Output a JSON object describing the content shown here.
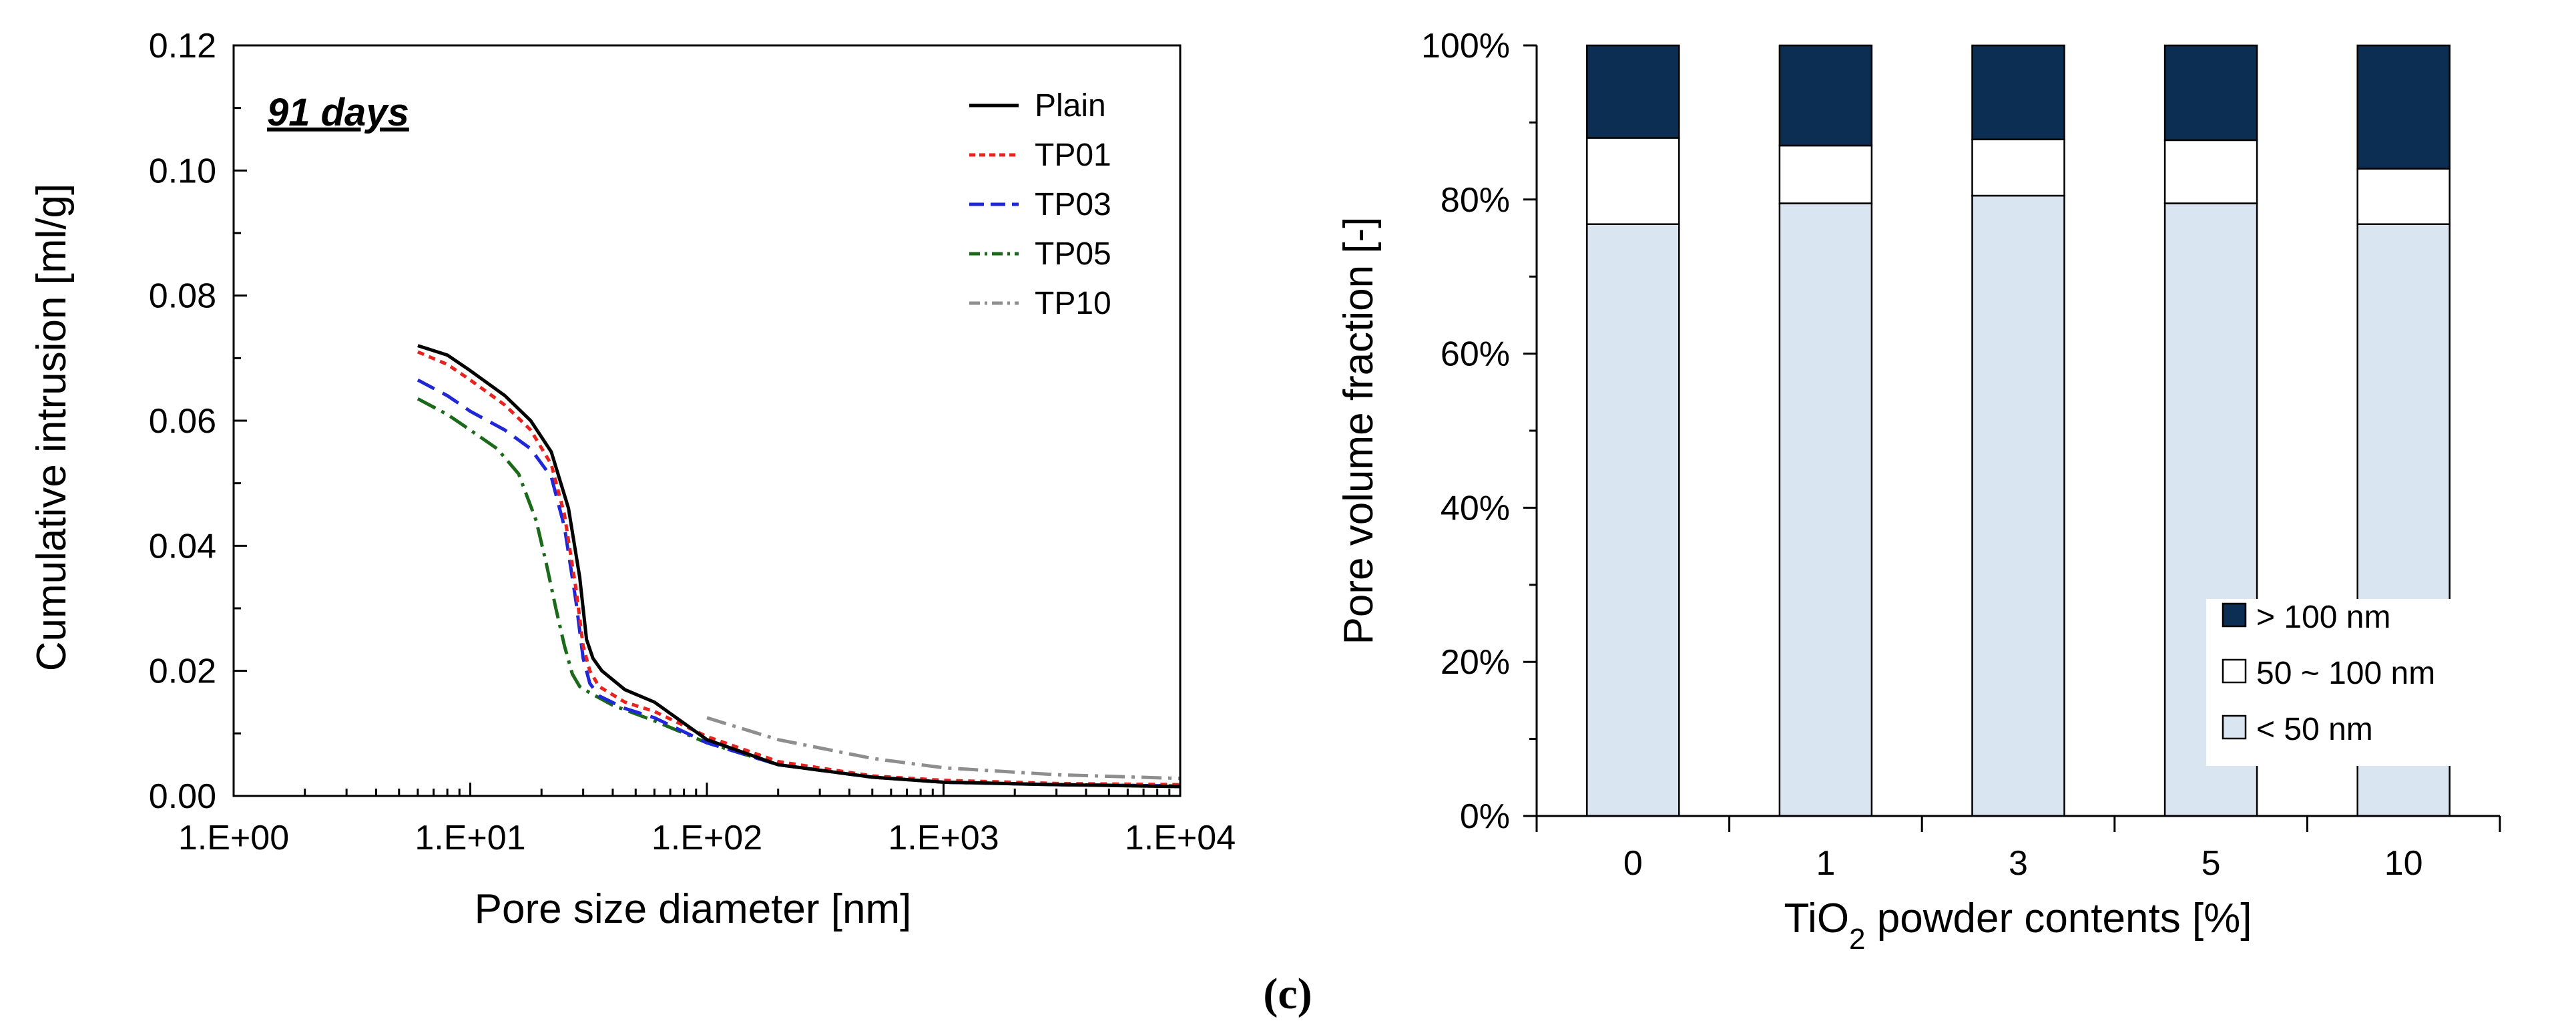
{
  "panel_label": "(c)",
  "chart_data": [
    {
      "type": "line",
      "annotation": "91 days",
      "xlabel": "Pore size diameter [nm]",
      "ylabel": "Cumulative intrusion [ml/g]",
      "xscale": "log",
      "xlim": [
        1,
        10000
      ],
      "ylim": [
        0,
        0.12
      ],
      "x_tick_labels": [
        "1.E+00",
        "1.E+01",
        "1.E+02",
        "1.E+03",
        "1.E+04"
      ],
      "y_tick_labels": [
        "0.00",
        "0.02",
        "0.04",
        "0.06",
        "0.08",
        "0.10",
        "0.12"
      ],
      "legend_position": "top-right",
      "series": [
        {
          "name": "Plain",
          "color": "#000000",
          "dash": "solid",
          "x": [
            6,
            8,
            10,
            14,
            18,
            22,
            26,
            29,
            31,
            33,
            36,
            45,
            60,
            100,
            200,
            500,
            1000,
            3000,
            10000
          ],
          "y": [
            0.072,
            0.0705,
            0.068,
            0.064,
            0.06,
            0.055,
            0.046,
            0.035,
            0.025,
            0.022,
            0.02,
            0.017,
            0.015,
            0.009,
            0.005,
            0.003,
            0.0022,
            0.0018,
            0.0015
          ]
        },
        {
          "name": "TP01",
          "color": "#e8231f",
          "dash": "10,8",
          "x": [
            6,
            8,
            10,
            14,
            18,
            22,
            25,
            28,
            30,
            32,
            35,
            45,
            60,
            100,
            200,
            500,
            1000,
            3000,
            10000
          ],
          "y": [
            0.071,
            0.069,
            0.0665,
            0.0625,
            0.0585,
            0.053,
            0.045,
            0.033,
            0.024,
            0.02,
            0.0175,
            0.015,
            0.0135,
            0.0095,
            0.0055,
            0.0032,
            0.0025,
            0.002,
            0.0018
          ]
        },
        {
          "name": "TP03",
          "color": "#1f27d8",
          "dash": "28,14",
          "x": [
            6,
            8,
            10,
            14,
            18,
            22,
            25,
            28,
            30,
            32,
            35,
            45,
            60,
            100,
            200,
            500,
            1000,
            3000,
            10000
          ],
          "y": [
            0.0665,
            0.064,
            0.0615,
            0.0585,
            0.0555,
            0.051,
            0.043,
            0.031,
            0.022,
            0.018,
            0.016,
            0.014,
            0.0125,
            0.0085,
            0.005,
            0.003,
            0.0022,
            0.0018,
            0.0016
          ]
        },
        {
          "name": "TP05",
          "color": "#1a6a1a",
          "dash": "30,10,5,10",
          "x": [
            6,
            8,
            10,
            13,
            16,
            19,
            21,
            23,
            25,
            27,
            29,
            32,
            40,
            60,
            100,
            200,
            500,
            1000,
            3000,
            10000
          ],
          "y": [
            0.0635,
            0.061,
            0.0585,
            0.0555,
            0.0515,
            0.044,
            0.037,
            0.03,
            0.024,
            0.0195,
            0.0175,
            0.0165,
            0.0145,
            0.012,
            0.0085,
            0.005,
            0.003,
            0.0022,
            0.0018,
            0.0016
          ]
        },
        {
          "name": "TP10",
          "color": "#8e8e8e",
          "dash": "30,10,5,10",
          "x": [
            100,
            200,
            500,
            1000,
            3000,
            10000
          ],
          "y": [
            0.0125,
            0.009,
            0.006,
            0.0045,
            0.0034,
            0.0028
          ]
        }
      ]
    },
    {
      "type": "bar",
      "stacked": true,
      "xlabel": "TiO2 powder contents [%]",
      "xlabel_parts": {
        "pre": "TiO",
        "sub": "2",
        "post": " powder contents [%]"
      },
      "ylabel": "Pore volume fraction [-]",
      "ylim": [
        0,
        100
      ],
      "y_tick_labels": [
        "0%",
        "20%",
        "40%",
        "60%",
        "80%",
        "100%"
      ],
      "categories": [
        "0",
        "1",
        "3",
        "5",
        "10"
      ],
      "legend_position": "bottom-right",
      "series": [
        {
          "name": "< 50 nm",
          "color": "#d9e5f1",
          "values": [
            76.8,
            79.5,
            80.5,
            79.5,
            76.8
          ]
        },
        {
          "name": "50 ~ 100 nm",
          "color": "#ffffff",
          "values": [
            11.2,
            7.5,
            7.3,
            8.2,
            7.2
          ]
        },
        {
          "name": "> 100 nm",
          "color": "#0b2e52",
          "values": [
            12.0,
            13.0,
            12.2,
            12.3,
            16.0
          ]
        }
      ],
      "legend_order": [
        "> 100 nm",
        "50 ~ 100 nm",
        "< 50 nm"
      ]
    }
  ]
}
